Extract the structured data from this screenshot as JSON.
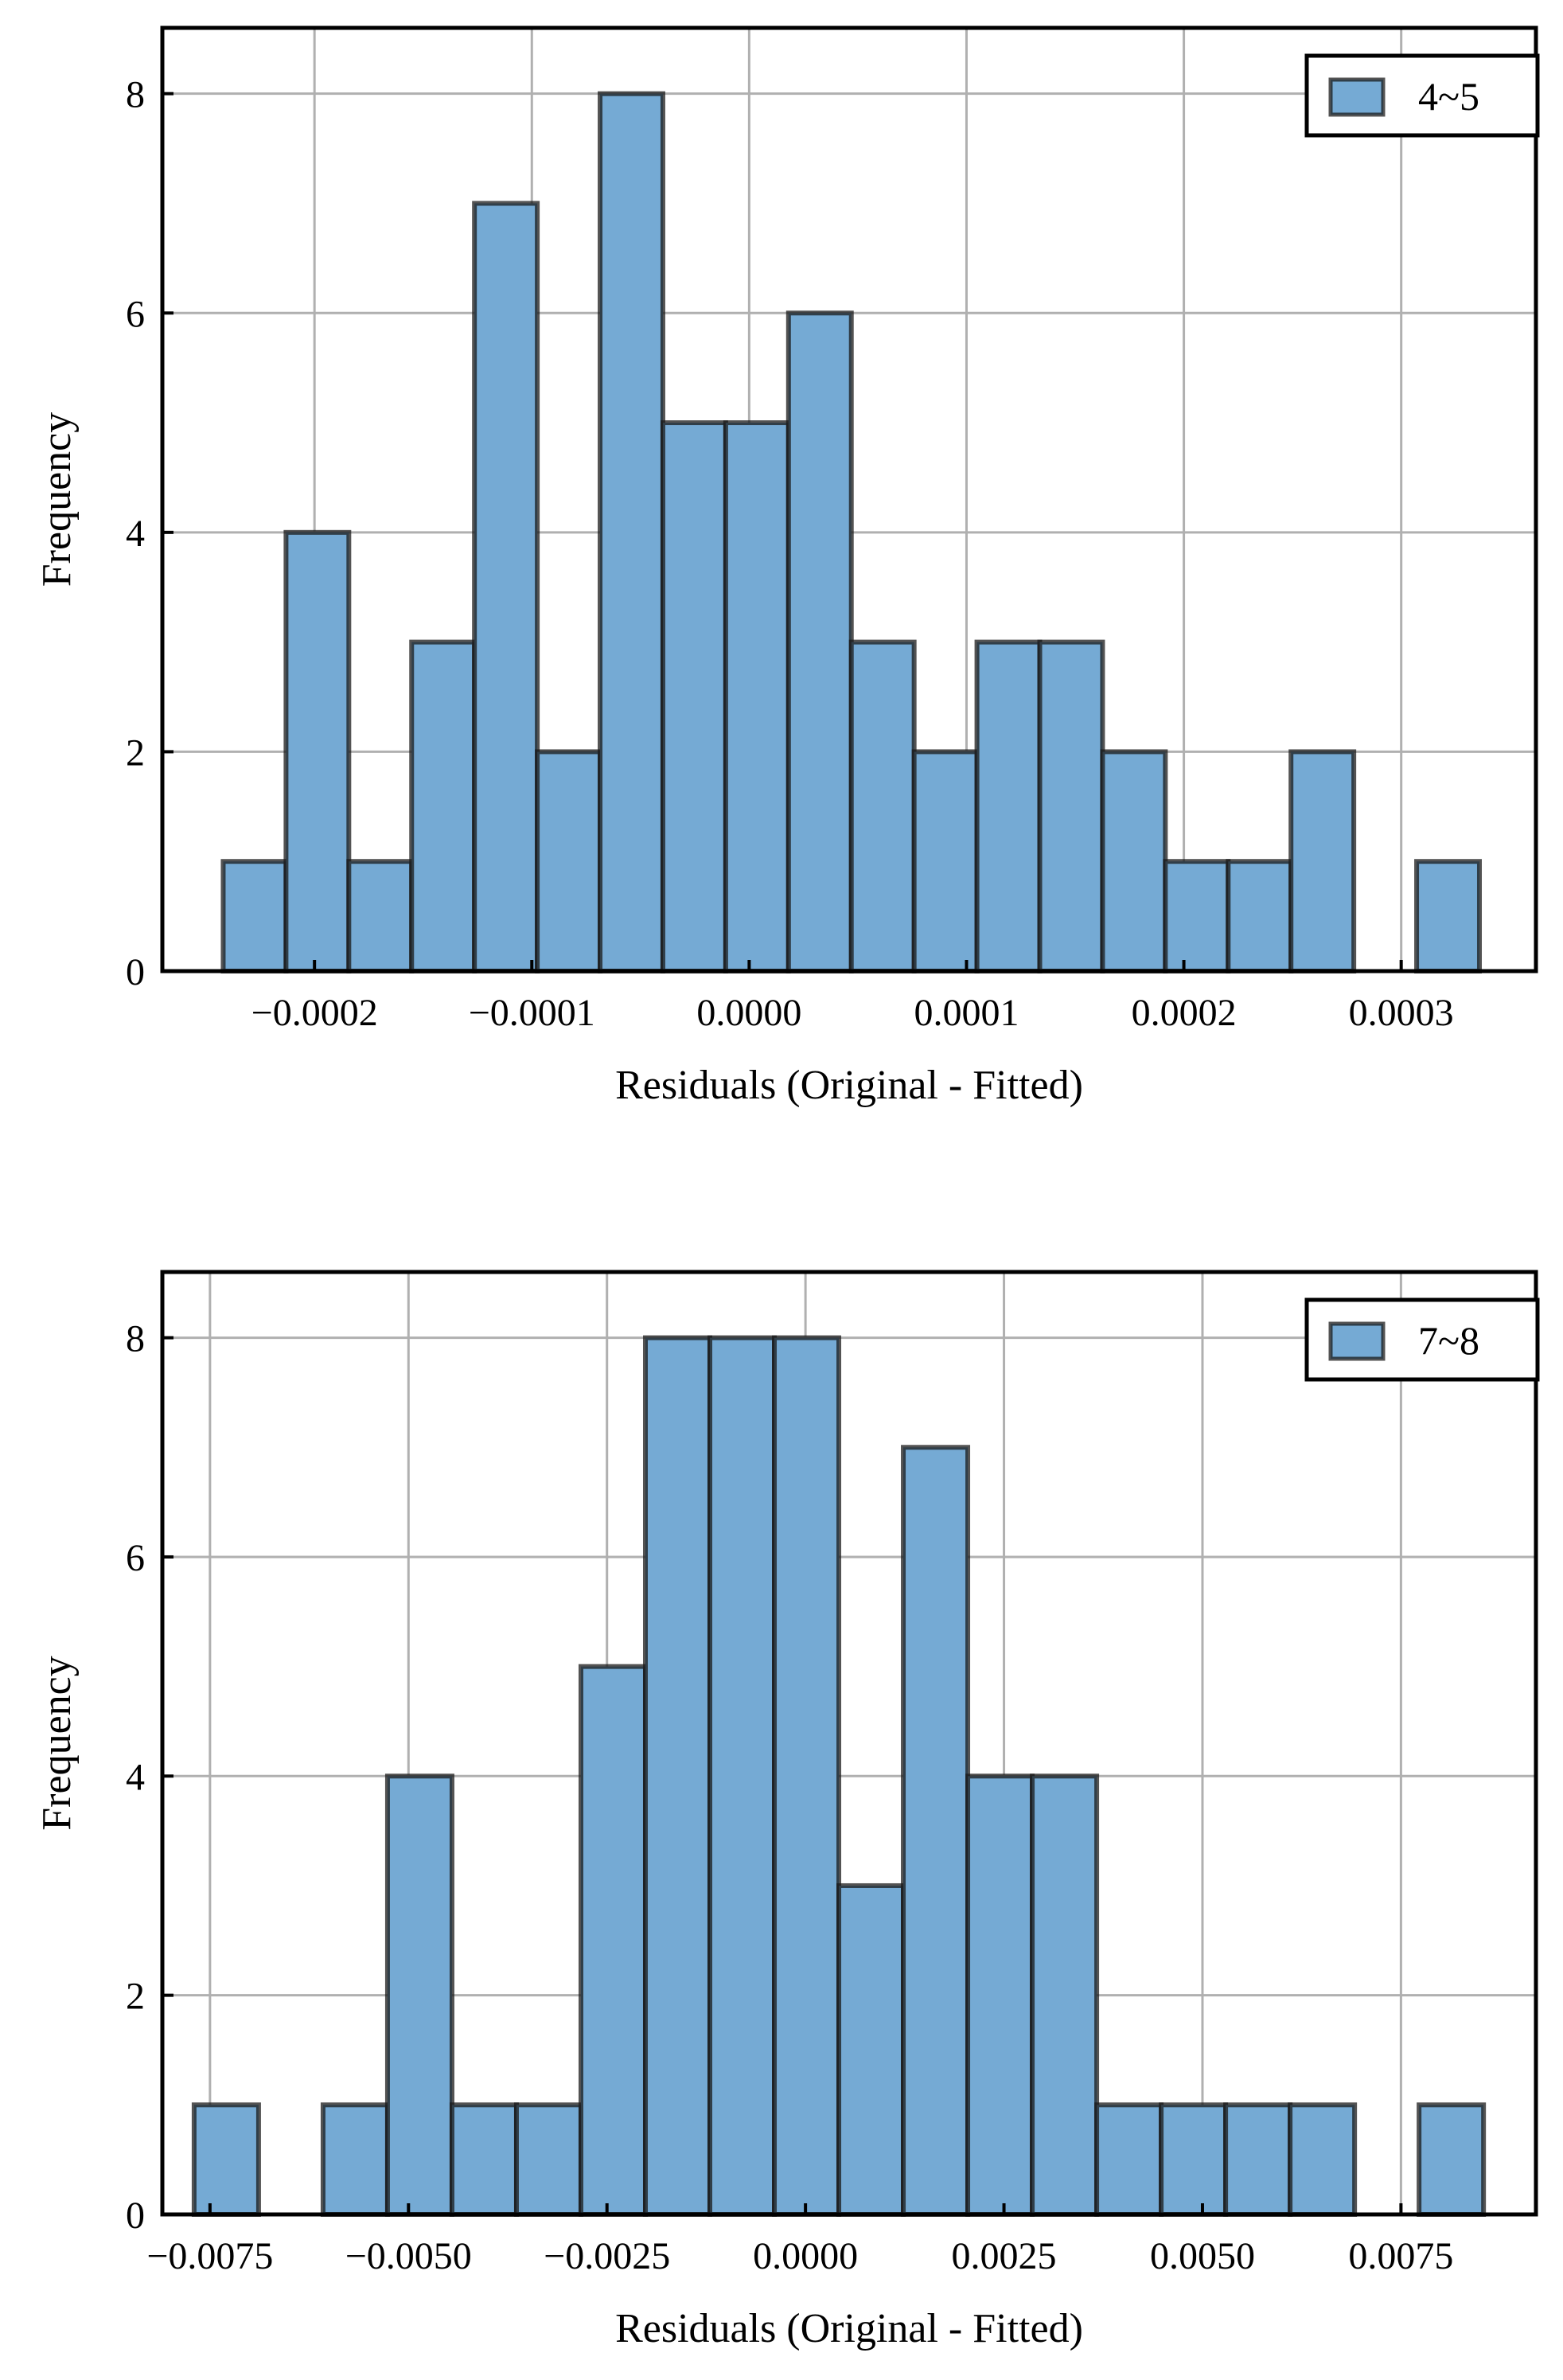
{
  "colors": {
    "bar_fill": "#75aad4",
    "bar_edge": "#1a1a1a",
    "grid": "#b0b0b0",
    "frame": "#000000"
  },
  "chart_data": [
    {
      "type": "bar",
      "subtype": "histogram",
      "title": "",
      "xlabel": "Residuals (Original - Fitted)",
      "ylabel": "Frequency",
      "legend": "4~5",
      "legend_position": "top-right",
      "grid": true,
      "xlim": [
        -0.00027,
        0.000362
      ],
      "ylim": [
        0,
        8.6
      ],
      "xticks": [
        -0.0002,
        -0.0001,
        0.0,
        0.0001,
        0.0002,
        0.0003
      ],
      "xtick_labels": [
        "−0.0002",
        "−0.0001",
        "0.0000",
        "0.0001",
        "0.0002",
        "0.0003"
      ],
      "yticks": [
        0,
        2,
        4,
        6,
        8
      ],
      "ytick_labels": [
        "0",
        "2",
        "4",
        "6",
        "8"
      ],
      "bin_start": -0.000242,
      "bin_width": 2.89e-05,
      "counts": [
        1,
        4,
        1,
        3,
        7,
        2,
        8,
        5,
        5,
        6,
        3,
        2,
        3,
        3,
        2,
        1,
        1,
        2,
        0,
        1
      ]
    },
    {
      "type": "bar",
      "subtype": "histogram",
      "title": "",
      "xlabel": "Residuals (Original - Fitted)",
      "ylabel": "Frequency",
      "legend": "7~8",
      "legend_position": "top-right",
      "grid": true,
      "xlim": [
        -0.0081,
        0.0092
      ],
      "ylim": [
        0,
        8.6
      ],
      "xticks": [
        -0.0075,
        -0.005,
        -0.0025,
        0.0,
        0.0025,
        0.005,
        0.0075
      ],
      "xtick_labels": [
        "−0.0075",
        "−0.0050",
        "−0.0025",
        "0.0000",
        "0.0025",
        "0.0050",
        "0.0075"
      ],
      "yticks": [
        0,
        2,
        4,
        6,
        8
      ],
      "ytick_labels": [
        "0",
        "2",
        "4",
        "6",
        "8"
      ],
      "bin_start": -0.0077,
      "bin_width": 0.000812,
      "counts": [
        1,
        0,
        1,
        4,
        1,
        1,
        5,
        8,
        8,
        8,
        3,
        7,
        4,
        4,
        1,
        1,
        1,
        1,
        0,
        1
      ]
    }
  ]
}
